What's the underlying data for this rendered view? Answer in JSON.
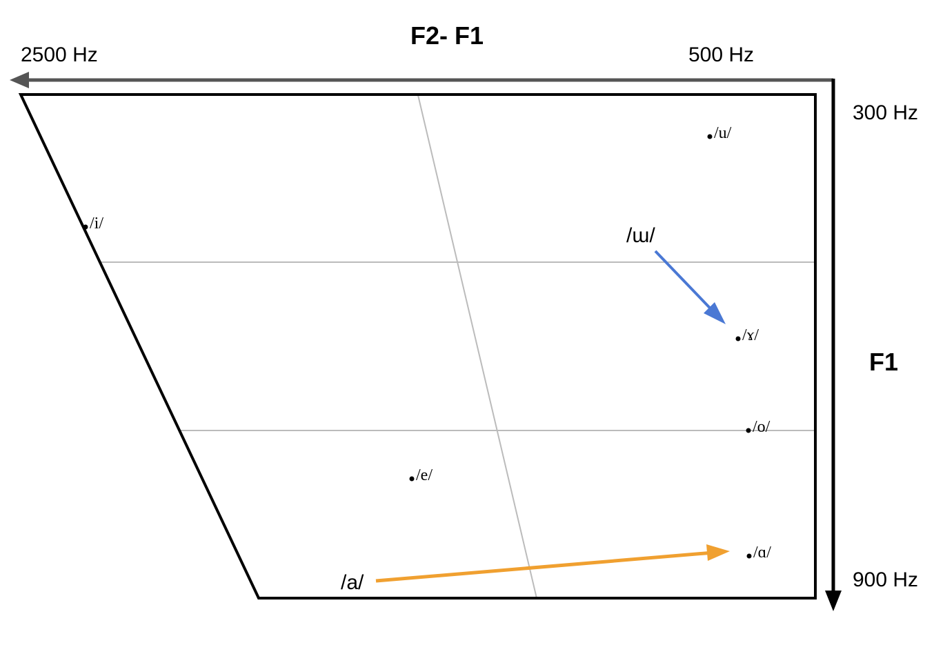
{
  "diagram": {
    "title": "F2- F1",
    "f2_axis": {
      "left_label": "2500 Hz",
      "right_label": "500 Hz"
    },
    "f1_axis": {
      "title": "F1",
      "top_label": "300 Hz",
      "bottom_label": "900 Hz"
    },
    "vowels": [
      {
        "id": "u",
        "label": "/u/"
      },
      {
        "id": "i",
        "label": "/i/"
      },
      {
        "id": "gamma",
        "label": "/ɤ/"
      },
      {
        "id": "o",
        "label": "/o/"
      },
      {
        "id": "e",
        "label": "/e/"
      },
      {
        "id": "alpha",
        "label": "/ɑ/"
      }
    ],
    "annotations": [
      {
        "id": "shift-u",
        "label": "/ɯ/",
        "target": "/ɤ/",
        "color": "#4a78d4"
      },
      {
        "id": "shift-a",
        "label": "/a/",
        "target": "/ɑ/",
        "color": "#f0a030"
      }
    ],
    "colors": {
      "frame": "#000000",
      "grid": "#bbbbbb",
      "f2_arrow": "#555555",
      "f1_arrow": "#000000"
    }
  }
}
